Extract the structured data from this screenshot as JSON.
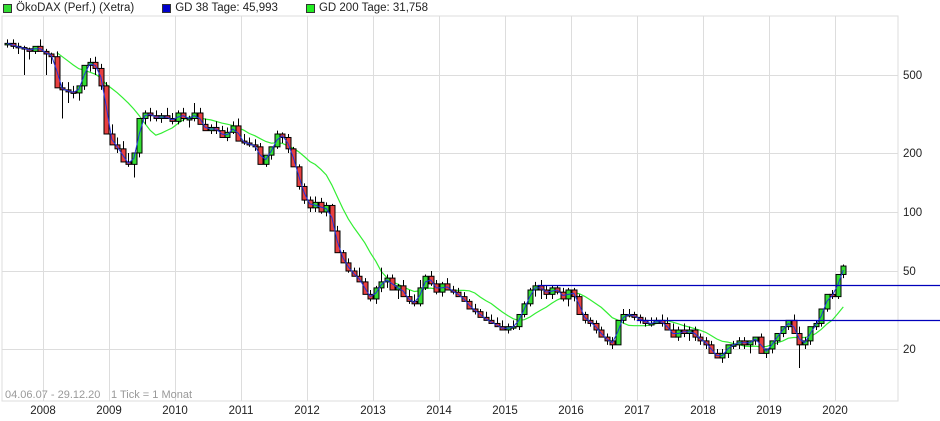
{
  "legend": [
    {
      "label": "ÖkoDAX (Perf.) (Xetra)",
      "color": "#33dd33"
    },
    {
      "label": "GD 38 Tage: 45,993",
      "color": "#0000cc"
    },
    {
      "label": "GD 200 Tage: 31,758",
      "color": "#22ee22"
    }
  ],
  "footer": {
    "date_range": "04.06.07 - 29.12.20",
    "tick_info": "1 Tick = 1 Monat"
  },
  "colors": {
    "up_candle": "#33dd33",
    "down_candle": "#e84040",
    "ma38": "#2233dd",
    "ma200": "#33ee33",
    "hline": "#0000bb",
    "grid": "#dddddd"
  },
  "chart_data": {
    "type": "candlestick",
    "title": "ÖkoDAX (Perf.) (Xetra)",
    "xlabel": "",
    "ylabel": "",
    "yscale": "log",
    "ylim": [
      14,
      950
    ],
    "y_ticks": [
      20,
      50,
      100,
      200,
      500
    ],
    "x_ticks": [
      "2008",
      "2009",
      "2010",
      "2011",
      "2012",
      "2013",
      "2014",
      "2015",
      "2016",
      "2017",
      "2018",
      "2019",
      "2020"
    ],
    "grid": true,
    "legend_position": "top-left",
    "period": "monthly",
    "start_month": "2007-06",
    "ohlc": [
      [
        720,
        760,
        690,
        725
      ],
      [
        725,
        760,
        680,
        700
      ],
      [
        700,
        730,
        640,
        690
      ],
      [
        690,
        705,
        500,
        680
      ],
      [
        680,
        690,
        600,
        660
      ],
      [
        660,
        700,
        640,
        700
      ],
      [
        700,
        760,
        680,
        660
      ],
      [
        660,
        680,
        500,
        640
      ],
      [
        640,
        650,
        570,
        620
      ],
      [
        620,
        660,
        540,
        430
      ],
      [
        430,
        460,
        300,
        420
      ],
      [
        420,
        460,
        360,
        410
      ],
      [
        410,
        440,
        380,
        405
      ],
      [
        405,
        420,
        370,
        440
      ],
      [
        440,
        560,
        420,
        560
      ],
      [
        560,
        610,
        520,
        580
      ],
      [
        580,
        620,
        500,
        540
      ],
      [
        540,
        570,
        420,
        440
      ],
      [
        440,
        460,
        260,
        250
      ],
      [
        250,
        280,
        230,
        220
      ],
      [
        220,
        240,
        200,
        210
      ],
      [
        210,
        230,
        180,
        180
      ],
      [
        180,
        200,
        170,
        175
      ],
      [
        175,
        200,
        150,
        200
      ],
      [
        200,
        300,
        190,
        300
      ],
      [
        300,
        330,
        280,
        320
      ],
      [
        320,
        340,
        290,
        310
      ],
      [
        310,
        330,
        290,
        300
      ],
      [
        300,
        320,
        285,
        310
      ],
      [
        310,
        340,
        300,
        300
      ],
      [
        300,
        320,
        280,
        290
      ],
      [
        290,
        330,
        280,
        320
      ],
      [
        320,
        340,
        290,
        300
      ],
      [
        300,
        310,
        270,
        300
      ],
      [
        300,
        360,
        290,
        320
      ],
      [
        320,
        340,
        280,
        280
      ],
      [
        280,
        300,
        260,
        260
      ],
      [
        260,
        280,
        250,
        270
      ],
      [
        270,
        290,
        250,
        260
      ],
      [
        260,
        275,
        240,
        240
      ],
      [
        240,
        270,
        230,
        255
      ],
      [
        255,
        290,
        250,
        275
      ],
      [
        275,
        300,
        240,
        230
      ],
      [
        230,
        250,
        220,
        225
      ],
      [
        225,
        240,
        215,
        220
      ],
      [
        220,
        235,
        205,
        215
      ],
      [
        215,
        225,
        180,
        175
      ],
      [
        175,
        195,
        170,
        195
      ],
      [
        195,
        215,
        185,
        215
      ],
      [
        215,
        260,
        210,
        250
      ],
      [
        250,
        255,
        225,
        240
      ],
      [
        240,
        250,
        200,
        210
      ],
      [
        210,
        215,
        170,
        170
      ],
      [
        170,
        175,
        130,
        135
      ],
      [
        135,
        140,
        110,
        115
      ],
      [
        115,
        120,
        100,
        105
      ],
      [
        105,
        120,
        100,
        112
      ],
      [
        112,
        118,
        98,
        100
      ],
      [
        100,
        112,
        95,
        108
      ],
      [
        108,
        110,
        80,
        80
      ],
      [
        80,
        85,
        62,
        62
      ],
      [
        62,
        64,
        55,
        55
      ],
      [
        55,
        58,
        49,
        50
      ],
      [
        50,
        52,
        47,
        47
      ],
      [
        47,
        52,
        44,
        44
      ],
      [
        44,
        46,
        38,
        38
      ],
      [
        38,
        40,
        35,
        36
      ],
      [
        36,
        42,
        34,
        41
      ],
      [
        41,
        52,
        39,
        44
      ],
      [
        44,
        48,
        41,
        46
      ],
      [
        46,
        48,
        40,
        40
      ],
      [
        40,
        43,
        36,
        42
      ],
      [
        42,
        45,
        38,
        37
      ],
      [
        37,
        40,
        34,
        35
      ],
      [
        35,
        38,
        33,
        34
      ],
      [
        34,
        45,
        33,
        41
      ],
      [
        41,
        48,
        40,
        47
      ],
      [
        47,
        50,
        42,
        43
      ],
      [
        43,
        45,
        38,
        39
      ],
      [
        39,
        44,
        37,
        43
      ],
      [
        43,
        46,
        40,
        40
      ],
      [
        40,
        42,
        38,
        39
      ],
      [
        39,
        41,
        37,
        37
      ],
      [
        37,
        39,
        35,
        35
      ],
      [
        35,
        36,
        32,
        32
      ],
      [
        32,
        34,
        30,
        31
      ],
      [
        31,
        32,
        29,
        29
      ],
      [
        29,
        31,
        28,
        28
      ],
      [
        28,
        30,
        27,
        27
      ],
      [
        27,
        29,
        26,
        26
      ],
      [
        26,
        28,
        25,
        25
      ],
      [
        25,
        27,
        24,
        26
      ],
      [
        26,
        28,
        25,
        26
      ],
      [
        26,
        30,
        25,
        30
      ],
      [
        30,
        35,
        29,
        34
      ],
      [
        34,
        41,
        33,
        40
      ],
      [
        40,
        44,
        37,
        42
      ],
      [
        42,
        45,
        36,
        40
      ],
      [
        40,
        42,
        36,
        38
      ],
      [
        38,
        42,
        36,
        41
      ],
      [
        41,
        42,
        38,
        39
      ],
      [
        39,
        41,
        35,
        36
      ],
      [
        36,
        41,
        33,
        40
      ],
      [
        40,
        41,
        35,
        37
      ],
      [
        37,
        38,
        31,
        30
      ],
      [
        30,
        31,
        27,
        28
      ],
      [
        28,
        29,
        26,
        27
      ],
      [
        27,
        28,
        24,
        25
      ],
      [
        25,
        26,
        23,
        23
      ],
      [
        23,
        24,
        21,
        22
      ],
      [
        22,
        23,
        20,
        21
      ],
      [
        21,
        28,
        21,
        28
      ],
      [
        28,
        32,
        27,
        30
      ],
      [
        30,
        32,
        29,
        30
      ],
      [
        30,
        31,
        28,
        29
      ],
      [
        29,
        30,
        27,
        28
      ],
      [
        28,
        29,
        26,
        27
      ],
      [
        27,
        29,
        26,
        27
      ],
      [
        27,
        29,
        27,
        28
      ],
      [
        28,
        30,
        26,
        27
      ],
      [
        27,
        29,
        25,
        25
      ],
      [
        25,
        27,
        23,
        23
      ],
      [
        23,
        26,
        22,
        25
      ],
      [
        25,
        27,
        23,
        24
      ],
      [
        24,
        26,
        22,
        25
      ],
      [
        25,
        26,
        22,
        23
      ],
      [
        23,
        24,
        21,
        22
      ],
      [
        22,
        23,
        20,
        21
      ],
      [
        21,
        22,
        19,
        19
      ],
      [
        19,
        20,
        18,
        18
      ],
      [
        18,
        20,
        17,
        19
      ],
      [
        19,
        21,
        18,
        21
      ],
      [
        21,
        22,
        20,
        21
      ],
      [
        21,
        23,
        20,
        22
      ],
      [
        22,
        23,
        20,
        21
      ],
      [
        21,
        22,
        19,
        22
      ],
      [
        22,
        23,
        21,
        23
      ],
      [
        23,
        24,
        20,
        19
      ],
      [
        19,
        20,
        18,
        20
      ],
      [
        20,
        22,
        19,
        22
      ],
      [
        22,
        24,
        21,
        24
      ],
      [
        24,
        26,
        23,
        26
      ],
      [
        26,
        28,
        25,
        28
      ],
      [
        28,
        30,
        24,
        24
      ],
      [
        24,
        26,
        16,
        21
      ],
      [
        21,
        23,
        20,
        22
      ],
      [
        22,
        26,
        21,
        26
      ],
      [
        26,
        28,
        25,
        27
      ],
      [
        27,
        32,
        26,
        32
      ],
      [
        32,
        38,
        31,
        38
      ],
      [
        38,
        40,
        36,
        37
      ],
      [
        37,
        48,
        36,
        48
      ],
      [
        48,
        54,
        46,
        53
      ]
    ],
    "ma38_last": 45.993,
    "ma200_last": 31.758,
    "horizontal_lines": [
      {
        "value": 42.5,
        "from_month": "2015-07",
        "to": "right-edge"
      },
      {
        "value": 28.0,
        "from_month": "2017-01",
        "to": "right-edge"
      }
    ]
  }
}
